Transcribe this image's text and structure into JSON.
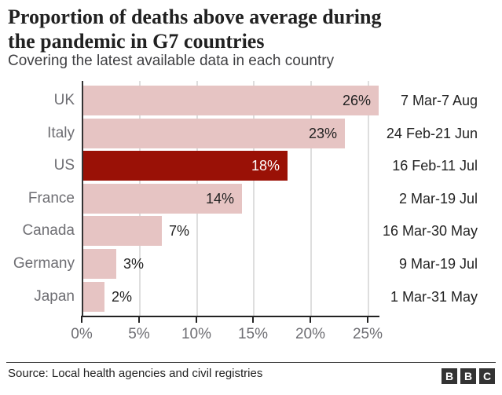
{
  "header": {
    "title_lines": [
      "Proportion of deaths above average during",
      "the pandemic in G7 countries"
    ],
    "subtitle": "Covering the latest available data in each country"
  },
  "chart_data": {
    "type": "bar",
    "orientation": "horizontal",
    "title": "Proportion of deaths above average during the pandemic in G7 countries",
    "subtitle": "Covering the latest available data in each country",
    "categories": [
      "UK",
      "Italy",
      "US",
      "France",
      "Canada",
      "Germany",
      "Japan"
    ],
    "values": [
      26,
      23,
      18,
      14,
      7,
      3,
      2
    ],
    "value_labels": [
      "26%",
      "23%",
      "18%",
      "14%",
      "7%",
      "3%",
      "2%"
    ],
    "date_ranges": [
      "7 Mar-7 Aug",
      "24 Feb-21 Jun",
      "16 Feb-11 Jul",
      "2 Mar-19 Jul",
      "16 Mar-30 May",
      "9 Mar-19 Jul",
      "1 Mar-31 May"
    ],
    "highlighted_category": "US",
    "x_ticks": [
      "0%",
      "5%",
      "10%",
      "15%",
      "20%",
      "25%"
    ],
    "x_tick_values": [
      0,
      5,
      10,
      15,
      20,
      25
    ],
    "xlim": [
      0,
      26
    ],
    "grid": true,
    "legend": false,
    "colors": {
      "bar": "#e6c4c3",
      "highlight": "#9a1106",
      "value_label": "#222222",
      "value_label_on_highlight": "#ffffff",
      "category_label": "#6e6e73",
      "tick_label": "#6e6e73",
      "axis": "#222222",
      "gridline": "#dedede"
    }
  },
  "footer": {
    "source": "Source: Local health agencies and civil registries",
    "logo_blocks": [
      "B",
      "B",
      "C"
    ]
  }
}
